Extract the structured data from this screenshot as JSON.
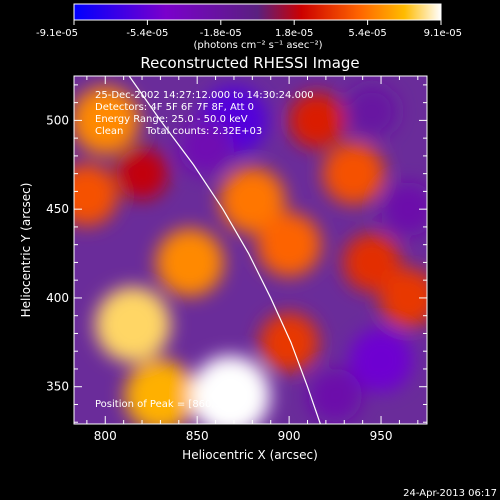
{
  "chart_data": {
    "type": "heatmap",
    "title": "Reconstructed RHESSI Image",
    "xlabel": "Heliocentric X (arcsec)",
    "ylabel": "Heliocentric Y (arcsec)",
    "xlim": [
      783,
      975
    ],
    "ylim": [
      329,
      525
    ],
    "x_ticks": [
      800,
      850,
      900,
      950
    ],
    "y_ticks": [
      350,
      400,
      450,
      500
    ],
    "colorbar": {
      "range": [
        -9.1e-05,
        9.1e-05
      ],
      "tick_labels": [
        "-9.1e-05",
        "-5.4e-05",
        "-1.8e-05",
        "1.8e-05",
        "5.4e-05",
        "9.1e-05"
      ],
      "unit_label": "(photons cm⁻² s⁻¹ asec⁻²)"
    },
    "annotations": {
      "time_range": "25-Dec-2002 14:27:12.000 to 14:30:24.000",
      "detectors": "Detectors: 4F 5F 6F 7F 8F, Att 0",
      "energy": "Energy Range: 25.0 - 50.0 keV",
      "clean": "Clean",
      "total_counts": "Total counts: 2.32E+03",
      "peak": "Position of Peak = [860,348]"
    },
    "peak": [
      860,
      348
    ],
    "limb_curve": [
      [
        813,
        525
      ],
      [
        830,
        500
      ],
      [
        848,
        475
      ],
      [
        864,
        450
      ],
      [
        878,
        425
      ],
      [
        890,
        400
      ],
      [
        901,
        375
      ],
      [
        910,
        350
      ],
      [
        917,
        329
      ]
    ],
    "blobs": [
      {
        "x": 815,
        "y": 385,
        "v": 8e-05
      },
      {
        "x": 830,
        "y": 345,
        "v": 7e-05
      },
      {
        "x": 868,
        "y": 345,
        "v": 9.1e-05
      },
      {
        "x": 800,
        "y": 500,
        "v": 6e-05
      },
      {
        "x": 790,
        "y": 458,
        "v": 4.5e-05
      },
      {
        "x": 846,
        "y": 420,
        "v": 6e-05
      },
      {
        "x": 880,
        "y": 455,
        "v": 5.5e-05
      },
      {
        "x": 900,
        "y": 430,
        "v": 5e-05
      },
      {
        "x": 900,
        "y": 375,
        "v": 3.8e-05
      },
      {
        "x": 935,
        "y": 470,
        "v": 4.5e-05
      },
      {
        "x": 945,
        "y": 420,
        "v": 3.5e-05
      },
      {
        "x": 965,
        "y": 400,
        "v": 3.8e-05
      },
      {
        "x": 915,
        "y": 500,
        "v": 3e-05
      },
      {
        "x": 820,
        "y": 470,
        "v": 2e-05
      },
      {
        "x": 870,
        "y": 500,
        "v": -6e-05
      },
      {
        "x": 855,
        "y": 485,
        "v": -3e-05
      },
      {
        "x": 950,
        "y": 365,
        "v": -5e-05
      },
      {
        "x": 925,
        "y": 345,
        "v": -2.5e-05
      },
      {
        "x": 945,
        "y": 505,
        "v": -2e-05
      },
      {
        "x": 965,
        "y": 450,
        "v": -2.5e-05
      }
    ]
  },
  "timestamp": "24-Apr-2013 06:17"
}
